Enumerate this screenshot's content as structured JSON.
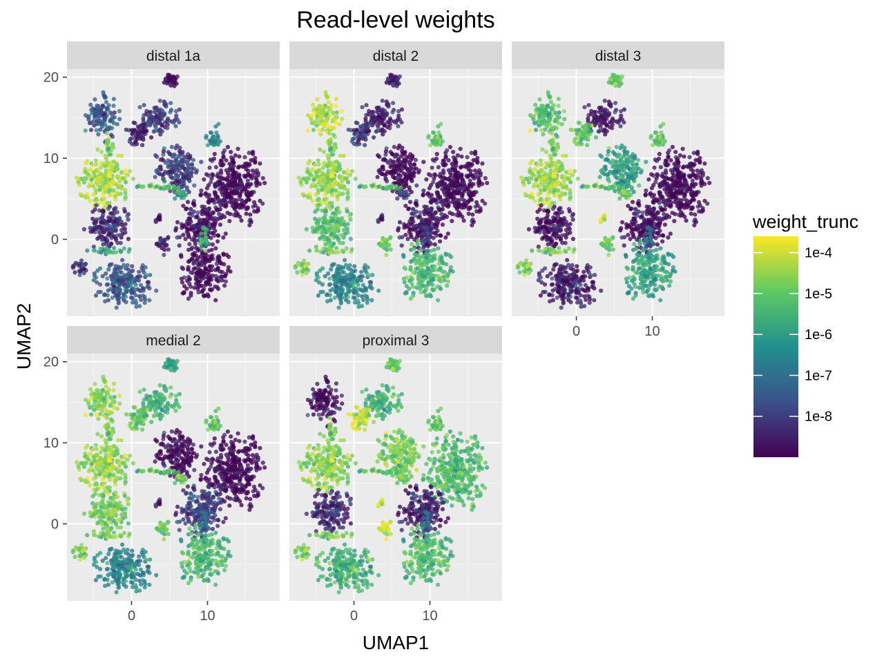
{
  "chart_data": {
    "type": "scatter",
    "title": "Read-level weights",
    "xlabel": "UMAP1",
    "ylabel": "UMAP2",
    "xlim": [
      -8.5,
      19.5
    ],
    "ylim": [
      -9.5,
      21
    ],
    "xticks": [
      0,
      10
    ],
    "yticks": [
      0,
      10,
      20
    ],
    "x_tick_labels": [
      "0",
      "10"
    ],
    "y_tick_labels": [
      "0",
      "10",
      "20"
    ],
    "grid": true,
    "legend_position": "right",
    "legend": {
      "title": "weight_trunc",
      "scale": "log10",
      "range": [
        -9,
        -3.6
      ],
      "ticks": [
        -8,
        -7,
        -6,
        -5,
        -4
      ],
      "tick_labels": [
        "1e-8",
        "1e-7",
        "1e-6",
        "1e-5",
        "1e-4"
      ],
      "colormap": [
        "#440154",
        "#3b528b",
        "#21908d",
        "#5dc963",
        "#fde725"
      ]
    },
    "clusters": [
      {
        "id": "c1",
        "x": 13.5,
        "y": 6.5,
        "rx": 3.8,
        "ry": 4.2,
        "n": 330
      },
      {
        "id": "c2",
        "x": 9.0,
        "y": 1.5,
        "rx": 2.8,
        "ry": 2.8,
        "n": 180
      },
      {
        "id": "c3",
        "x": 6.0,
        "y": 8.5,
        "rx": 2.6,
        "ry": 3.0,
        "n": 170
      },
      {
        "id": "c4",
        "x": -3.5,
        "y": 7.5,
        "rx": 3.0,
        "ry": 3.0,
        "n": 200
      },
      {
        "id": "c5",
        "x": -3.0,
        "y": 1.5,
        "rx": 2.6,
        "ry": 2.5,
        "n": 150
      },
      {
        "id": "c6",
        "x": -1.0,
        "y": -5.5,
        "rx": 3.5,
        "ry": 2.5,
        "n": 200
      },
      {
        "id": "c7",
        "x": 9.5,
        "y": -4.0,
        "rx": 3.0,
        "ry": 3.2,
        "n": 190
      },
      {
        "id": "c8",
        "x": -4.0,
        "y": 15.0,
        "rx": 2.0,
        "ry": 2.5,
        "n": 110
      },
      {
        "id": "c9",
        "x": 3.5,
        "y": 15.0,
        "rx": 2.5,
        "ry": 2.0,
        "n": 100
      },
      {
        "id": "c10",
        "x": 1.0,
        "y": 13.0,
        "rx": 1.6,
        "ry": 1.2,
        "n": 50
      },
      {
        "id": "c11",
        "x": 5.0,
        "y": 19.5,
        "rx": 1.0,
        "ry": 0.9,
        "n": 35
      },
      {
        "id": "c12",
        "x": 11.0,
        "y": 12.5,
        "rx": 1.0,
        "ry": 1.5,
        "n": 35
      },
      {
        "id": "c13",
        "x": 4.0,
        "y": -0.5,
        "rx": 0.8,
        "ry": 1.2,
        "n": 25
      },
      {
        "id": "c14",
        "x": -6.5,
        "y": -3.5,
        "rx": 1.0,
        "ry": 0.8,
        "n": 25
      },
      {
        "id": "c15",
        "x": 3.5,
        "y": 2.5,
        "rx": 0.5,
        "ry": 0.5,
        "n": 10
      },
      {
        "id": "c16",
        "x": 3.0,
        "y": 6.5,
        "rx": 3.0,
        "ry": 0.3,
        "n": 25
      },
      {
        "id": "c17",
        "x": -3.0,
        "y": -1.5,
        "rx": 3.0,
        "ry": 0.5,
        "n": 25
      },
      {
        "id": "c18",
        "x": 6.5,
        "y": 5.5,
        "rx": 0.8,
        "ry": 0.6,
        "n": 15
      },
      {
        "id": "c19",
        "x": -3.0,
        "y": 11.5,
        "rx": 0.5,
        "ry": 1.5,
        "n": 20
      },
      {
        "id": "c20",
        "x": 9.5,
        "y": 0.0,
        "rx": 0.6,
        "ry": 1.5,
        "n": 20
      }
    ],
    "panels": [
      {
        "label": "distal 1a",
        "row": 0,
        "col": 0,
        "cluster_weights": {
          "c1": -9,
          "c2": -8.8,
          "c3": -8.0,
          "c4": -4.3,
          "c5": -8.3,
          "c6": -7.5,
          "c7": -8.9,
          "c8": -7.5,
          "c9": -8.0,
          "c10": -8.5,
          "c11": -9,
          "c12": -6.5,
          "c13": -8.5,
          "c14": -8.5,
          "c15": -8.8,
          "c16": -5.0,
          "c17": -6.0,
          "c18": -6.0,
          "c19": -5.0,
          "c20": -5.5
        }
      },
      {
        "label": "distal 2",
        "row": 0,
        "col": 1,
        "cluster_weights": {
          "c1": -9,
          "c2": -8.7,
          "c3": -9,
          "c4": -4.5,
          "c5": -5.2,
          "c6": -6.5,
          "c7": -5.3,
          "c8": -4.2,
          "c9": -8.5,
          "c10": -8.0,
          "c11": -8.5,
          "c12": -5.0,
          "c13": -5.0,
          "c14": -5.0,
          "c15": -8.5,
          "c16": -5.0,
          "c17": -5.0,
          "c18": -8.0,
          "c19": -5.0,
          "c20": -8.0
        }
      },
      {
        "label": "distal 3",
        "row": 0,
        "col": 2,
        "cluster_weights": {
          "c1": -9,
          "c2": -8.9,
          "c3": -6.0,
          "c4": -4.4,
          "c5": -8.8,
          "c6": -8.5,
          "c7": -5.8,
          "c8": -5.2,
          "c9": -8.6,
          "c10": -5.0,
          "c11": -5.0,
          "c12": -5.0,
          "c13": -5.0,
          "c14": -5.0,
          "c15": -4.0,
          "c16": -5.0,
          "c17": -5.0,
          "c18": -5.0,
          "c19": -5.0,
          "c20": -7.0
        }
      },
      {
        "label": "medial 2",
        "row": 1,
        "col": 0,
        "cluster_weights": {
          "c1": -9,
          "c2": -8.0,
          "c3": -9,
          "c4": -4.5,
          "c5": -4.8,
          "c6": -6.5,
          "c7": -5.3,
          "c8": -4.6,
          "c9": -5.5,
          "c10": -5.0,
          "c11": -6.0,
          "c12": -5.0,
          "c13": -5.0,
          "c14": -5.0,
          "c15": -8.5,
          "c16": -5.0,
          "c17": -5.0,
          "c18": -5.0,
          "c19": -5.0,
          "c20": -7.0
        }
      },
      {
        "label": "proximal 3",
        "row": 1,
        "col": 1,
        "cluster_weights": {
          "c1": -5.3,
          "c2": -8.5,
          "c3": -4.8,
          "c4": -4.6,
          "c5": -8.3,
          "c6": -5.5,
          "c7": -5.2,
          "c8": -8.8,
          "c9": -5.5,
          "c10": -4.0,
          "c11": -5.0,
          "c12": -5.0,
          "c13": -4.0,
          "c14": -5.0,
          "c15": -4.0,
          "c16": -5.0,
          "c17": -5.0,
          "c18": -5.0,
          "c19": -5.0,
          "c20": -7.0
        }
      }
    ]
  }
}
